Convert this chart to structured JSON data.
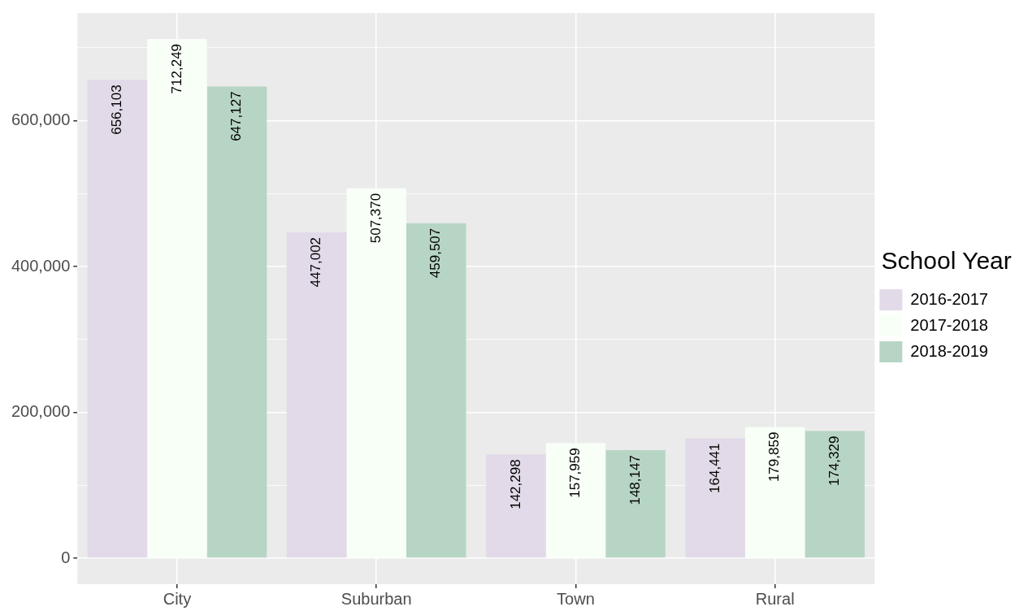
{
  "chart_data": {
    "type": "bar",
    "categories": [
      "City",
      "Suburban",
      "Town",
      "Rural"
    ],
    "series": [
      {
        "name": "2016-2017",
        "color": "#e2dae8",
        "values": [
          656103,
          447002,
          142298,
          164441
        ],
        "value_labels": [
          "656,103",
          "447,002",
          "142,298",
          "164,441"
        ]
      },
      {
        "name": "2017-2018",
        "color": "#f7fff7",
        "values": [
          712249,
          507370,
          157959,
          179859
        ],
        "value_labels": [
          "712,249",
          "507,370",
          "157,959",
          "179,859"
        ]
      },
      {
        "name": "2018-2019",
        "color": "#b7d5c4",
        "values": [
          647127,
          459507,
          148147,
          174329
        ],
        "value_labels": [
          "647,127",
          "459,507",
          "148,147",
          "174,329"
        ]
      }
    ],
    "legend_title": "School Year",
    "legend": "right",
    "data_labels": true,
    "grid": true,
    "ylim": [
      -35612,
      747861
    ],
    "yticks": [
      {
        "value": 0,
        "label": "0"
      },
      {
        "value": 100000,
        "label": null
      },
      {
        "value": 200000,
        "label": "200,000"
      },
      {
        "value": 300000,
        "label": null
      },
      {
        "value": 400000,
        "label": "400,000"
      },
      {
        "value": 500000,
        "label": null
      },
      {
        "value": 600000,
        "label": "600,000"
      },
      {
        "value": 700000,
        "label": null
      }
    ]
  }
}
